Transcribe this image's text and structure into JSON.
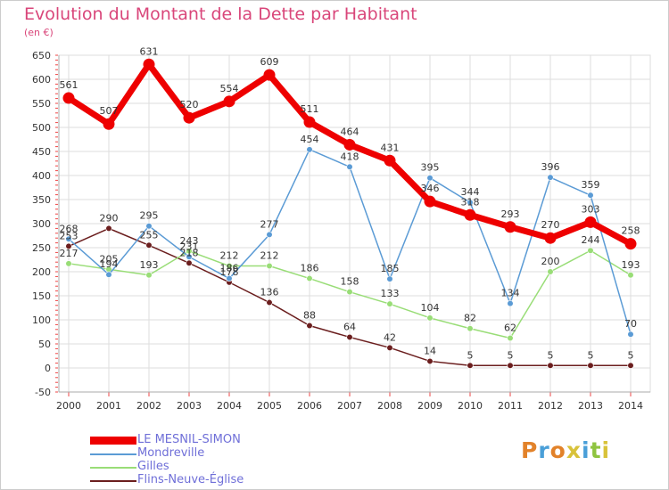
{
  "header": {
    "title": "Evolution du Montant de la Dette par Habitant",
    "subtitle": "(en €)"
  },
  "logo": {
    "text": "Proxiti",
    "colors": [
      "#e2822a",
      "#4a9fd8",
      "#e2822a",
      "#d8c23a",
      "#4a9fd8",
      "#8fc440",
      "#d8c23a"
    ]
  },
  "chart_data": {
    "type": "line",
    "x": [
      "2000",
      "2001",
      "2002",
      "2003",
      "2004",
      "2005",
      "2006",
      "2007",
      "2008",
      "2009",
      "2010",
      "2011",
      "2012",
      "2013",
      "2014"
    ],
    "ylim": [
      -50,
      650
    ],
    "yticks": [
      "-50",
      "0",
      "50",
      "100",
      "150",
      "200",
      "250",
      "300",
      "350",
      "400",
      "450",
      "500",
      "550",
      "600",
      "650"
    ],
    "grid": true,
    "legend_position": "bottom-left",
    "series": [
      {
        "name": "Flins-Neuve-Église",
        "color": "#6b1e1e",
        "values": [
          253,
          290,
          255,
          218,
          178,
          136,
          88,
          64,
          42,
          14,
          5,
          5,
          5,
          5,
          5
        ],
        "labels": [
          "253",
          "290",
          "255",
          "218",
          "178",
          "136",
          "88",
          "64",
          "42",
          "14",
          "5",
          "5",
          "5",
          "5",
          "5"
        ]
      },
      {
        "name": "Gilles",
        "color": "#99dd77",
        "values": [
          217,
          205,
          193,
          243,
          212,
          212,
          186,
          158,
          133,
          104,
          82,
          62,
          200,
          244,
          193
        ],
        "labels": [
          "217",
          "205",
          "193",
          "243",
          "212",
          "212",
          "186",
          "158",
          "133",
          "104",
          "82",
          "62",
          "200",
          "244",
          "193"
        ]
      },
      {
        "name": "Mondreville",
        "color": "#5b9bd5",
        "values": [
          268,
          194,
          295,
          231,
          186,
          277,
          454,
          418,
          185,
          395,
          344,
          134,
          396,
          359,
          70
        ],
        "labels": [
          "268",
          "194",
          "295",
          "231",
          "186",
          "277",
          "454",
          "418",
          "185",
          "395",
          "344",
          "134",
          "396",
          "359",
          "70"
        ]
      },
      {
        "name": "LE MESNIL-SIMON",
        "color": "#ee0000",
        "values": [
          561,
          507,
          631,
          520,
          554,
          609,
          511,
          464,
          431,
          346,
          318,
          293,
          270,
          303,
          258
        ],
        "labels": [
          "561",
          "507",
          "631",
          "520",
          "554",
          "609",
          "511",
          "464",
          "431",
          "346",
          "318",
          "293",
          "270",
          "303",
          "258"
        ]
      }
    ]
  }
}
